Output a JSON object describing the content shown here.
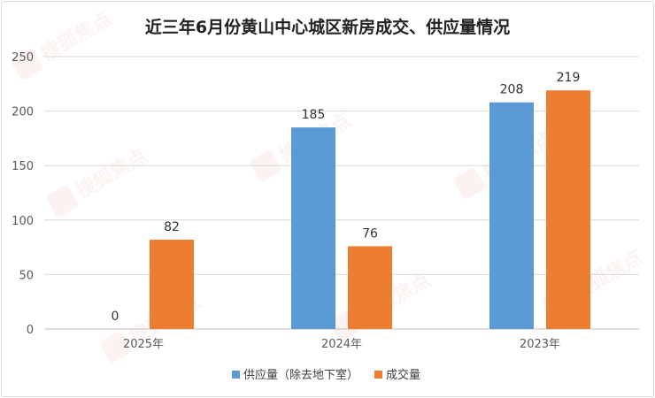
{
  "chart_data": {
    "type": "bar",
    "title": "近三年6月份黄山中心城区新房成交、供应量情况",
    "categories": [
      "2025年",
      "2024年",
      "2023年"
    ],
    "series": [
      {
        "name": "供应量（除去地下室）",
        "values": [
          0,
          185,
          208
        ],
        "color": "#5B9BD5"
      },
      {
        "name": "成交量",
        "values": [
          82,
          76,
          219
        ],
        "color": "#ED7D31"
      }
    ],
    "data_labels": [
      [
        "0",
        "185",
        "208"
      ],
      [
        "82",
        "76",
        "219"
      ]
    ],
    "ylim": [
      0,
      250
    ],
    "yticks": [
      "0",
      "50",
      "100",
      "150",
      "200",
      "250"
    ],
    "grid": true,
    "legend": "bottom"
  },
  "watermark": {
    "text": "搜狐焦点"
  }
}
